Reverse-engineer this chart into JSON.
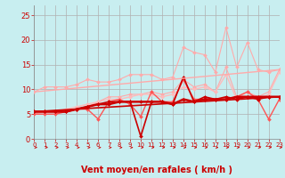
{
  "bg_color": "#c8eef0",
  "grid_color": "#b0b0b0",
  "xlabel": "Vent moyen/en rafales ( km/h )",
  "xlabel_color": "#cc0000",
  "xlabel_fontsize": 7,
  "xtick_color": "#cc0000",
  "ytick_color": "#cc0000",
  "ytick_fontsize": 6,
  "xtick_fontsize": 5,
  "ylim": [
    0,
    27
  ],
  "xlim": [
    0,
    23
  ],
  "xticks": [
    0,
    1,
    2,
    3,
    4,
    5,
    6,
    7,
    8,
    9,
    10,
    11,
    12,
    13,
    14,
    15,
    16,
    17,
    18,
    19,
    20,
    21,
    22,
    23
  ],
  "yticks": [
    0,
    5,
    10,
    15,
    20,
    25
  ],
  "lines": [
    {
      "x": [
        0,
        1,
        2,
        3,
        4,
        5,
        6,
        7,
        8,
        9,
        10,
        11,
        12,
        13,
        14,
        15,
        16,
        17,
        18,
        19,
        20,
        21,
        22,
        23
      ],
      "y": [
        9.5,
        10.5,
        10.5,
        10.5,
        11.0,
        12.0,
        11.5,
        11.5,
        12.0,
        13.0,
        13.0,
        13.0,
        12.0,
        12.5,
        18.5,
        17.5,
        17.0,
        13.5,
        22.5,
        14.5,
        19.5,
        14.0,
        13.5,
        14.0
      ],
      "color": "#ffaaaa",
      "lw": 0.8,
      "marker": "D",
      "ms": 2.0
    },
    {
      "x": [
        0,
        1,
        2,
        3,
        4,
        5,
        6,
        7,
        8,
        9,
        10,
        11,
        12,
        13,
        14,
        15,
        16,
        17,
        18,
        19,
        20,
        21,
        22,
        23
      ],
      "y": [
        5.0,
        5.5,
        5.5,
        5.5,
        6.0,
        6.5,
        7.5,
        8.5,
        8.5,
        9.0,
        9.0,
        9.5,
        9.0,
        9.5,
        12.0,
        10.5,
        11.0,
        9.5,
        14.5,
        8.5,
        9.5,
        8.5,
        9.5,
        14.0
      ],
      "color": "#ffaaaa",
      "lw": 0.8,
      "marker": "D",
      "ms": 2.0
    },
    {
      "x": [
        0,
        1,
        2,
        3,
        4,
        5,
        6,
        7,
        8,
        9,
        10,
        11,
        12,
        13,
        14,
        15,
        16,
        17,
        18,
        19,
        20,
        21,
        22,
        23
      ],
      "y": [
        5.5,
        5.5,
        5.5,
        6.0,
        6.5,
        7.0,
        7.5,
        8.0,
        8.0,
        8.5,
        9.0,
        9.0,
        8.5,
        9.0,
        10.5,
        10.0,
        10.5,
        9.5,
        13.0,
        8.0,
        9.5,
        8.0,
        9.0,
        13.5
      ],
      "color": "#ffbbbb",
      "lw": 1.0,
      "marker": "D",
      "ms": 2.0
    },
    {
      "x": [
        0,
        1,
        2,
        3,
        4,
        5,
        6,
        7,
        8,
        9,
        10,
        11,
        12,
        13,
        14,
        15,
        16,
        17,
        18,
        19,
        20,
        21,
        22,
        23
      ],
      "y": [
        5.0,
        5.0,
        5.0,
        5.5,
        6.0,
        6.0,
        4.0,
        7.5,
        8.0,
        7.0,
        4.5,
        9.5,
        7.5,
        7.5,
        12.0,
        8.0,
        8.0,
        8.0,
        8.0,
        8.5,
        9.5,
        8.0,
        4.0,
        8.0
      ],
      "color": "#ff5555",
      "lw": 1.0,
      "marker": "D",
      "ms": 2.0
    },
    {
      "x": [
        0,
        1,
        2,
        3,
        4,
        5,
        6,
        7,
        8,
        9,
        10,
        11,
        12,
        13,
        14,
        15,
        16,
        17,
        18,
        19,
        20,
        21,
        22,
        23
      ],
      "y": [
        5.5,
        5.5,
        5.5,
        5.5,
        6.0,
        6.5,
        7.0,
        7.5,
        7.5,
        7.5,
        0.5,
        7.5,
        7.5,
        7.0,
        12.5,
        7.5,
        8.5,
        8.0,
        8.5,
        8.0,
        8.5,
        8.0,
        8.5,
        8.5
      ],
      "color": "#cc0000",
      "lw": 1.2,
      "marker": "D",
      "ms": 2.0
    },
    {
      "x": [
        0,
        1,
        2,
        3,
        4,
        5,
        6,
        7,
        8,
        9,
        10,
        11,
        12,
        13,
        14,
        15,
        16,
        17,
        18,
        19,
        20,
        21,
        22,
        23
      ],
      "y": [
        5.5,
        5.5,
        5.5,
        5.5,
        6.0,
        6.5,
        7.0,
        7.0,
        7.5,
        7.5,
        7.5,
        7.5,
        7.5,
        7.0,
        8.0,
        7.5,
        8.0,
        8.0,
        8.0,
        8.5,
        8.5,
        8.5,
        8.5,
        8.5
      ],
      "color": "#cc0000",
      "lw": 1.8,
      "marker": "D",
      "ms": 2.0
    },
    {
      "x": [
        0,
        23
      ],
      "y": [
        5.5,
        8.5
      ],
      "color": "#cc0000",
      "lw": 1.2,
      "marker": null,
      "ms": 0
    },
    {
      "x": [
        0,
        23
      ],
      "y": [
        9.5,
        14.0
      ],
      "color": "#ffaaaa",
      "lw": 1.0,
      "marker": null,
      "ms": 0
    }
  ],
  "arrow_color": "#cc0000",
  "spine_color": "#888888"
}
